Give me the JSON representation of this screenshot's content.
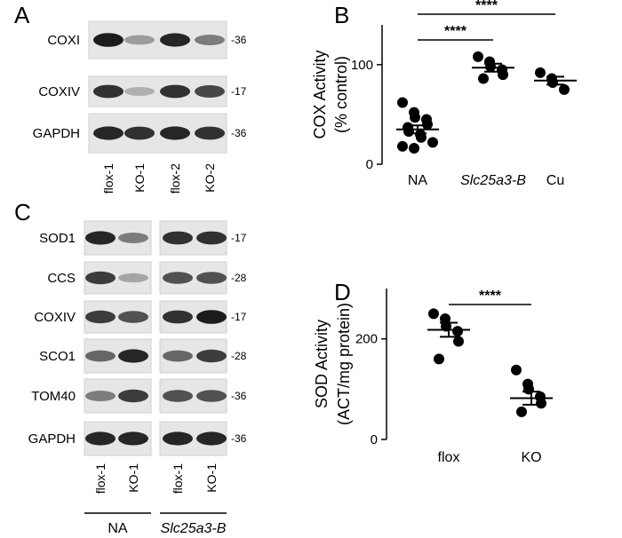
{
  "blots": [
    {
      "panel": "A",
      "rows": [
        "COXI",
        "COXIV",
        "GAPDH"
      ],
      "markers": [
        "-36",
        "-17",
        "-36"
      ],
      "lanes": [
        "flox-1",
        "KO-1",
        "flox-2",
        "KO-2"
      ]
    },
    {
      "panel": "C",
      "rows": [
        "SOD1",
        "CCS",
        "COXIV",
        "SCO1",
        "TOM40",
        "GAPDH"
      ],
      "markers": [
        "-17",
        "-28",
        "-17",
        "-28",
        "-36",
        "-36"
      ],
      "lanes": [
        "flox-1",
        "KO-1",
        "flox-1",
        "KO-1"
      ],
      "groups": [
        "NA",
        "Slc25a3-B"
      ]
    }
  ],
  "chart_data": [
    {
      "type": "dot",
      "panel": "B",
      "ylabel": [
        "COX Activity",
        "(% control)"
      ],
      "categories": [
        "NA",
        "Slc25a3-B",
        "Cu"
      ],
      "points": [
        [
          62,
          52,
          47,
          45,
          40,
          37,
          33,
          30,
          27,
          22,
          18,
          16
        ],
        [
          108,
          103,
          98,
          95,
          90,
          86
        ],
        [
          92,
          86,
          82,
          75
        ]
      ],
      "means": [
        35,
        97,
        84
      ],
      "sems": [
        4,
        4,
        4
      ],
      "ylim": [
        0,
        140
      ],
      "yticks": [
        0,
        100
      ],
      "comparisons": [
        {
          "between": [
            "NA",
            "Slc25a3-B"
          ],
          "label": "****"
        },
        {
          "between": [
            "NA",
            "Cu"
          ],
          "label": "****"
        }
      ]
    },
    {
      "type": "dot",
      "panel": "D",
      "ylabel": [
        "SOD Activity",
        "(ACT/mg protein)"
      ],
      "categories": [
        "flox",
        "KO"
      ],
      "points": [
        [
          250,
          240,
          225,
          215,
          195,
          160
        ],
        [
          138,
          110,
          100,
          85,
          72,
          55
        ]
      ],
      "means": [
        218,
        82
      ],
      "sems": [
        14,
        13
      ],
      "ylim": [
        0,
        300
      ],
      "yticks": [
        0,
        200
      ],
      "comparisons": [
        {
          "between": [
            "flox",
            "KO"
          ],
          "label": "****"
        }
      ]
    }
  ]
}
